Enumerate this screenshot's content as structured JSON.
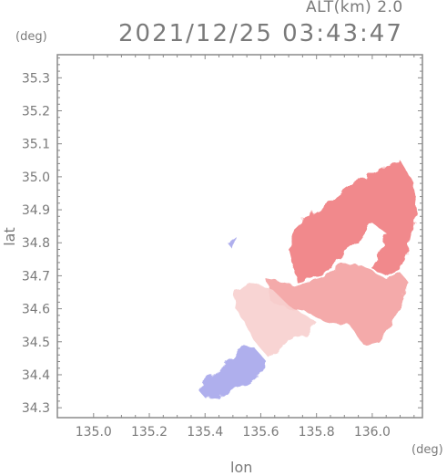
{
  "header": {
    "altitude_label": "ALT(km) 2.0",
    "timestamp": "2021/12/25 03:43:47"
  },
  "axes": {
    "x_unit": "(deg)",
    "y_unit": "(deg)",
    "x_label": "lon",
    "y_label": "lat",
    "x_range": [
      134.87,
      136.18
    ],
    "y_range": [
      34.27,
      35.37
    ],
    "x_ticks": [
      "135.0",
      "135.2",
      "135.4",
      "135.6",
      "135.8",
      "136.0"
    ],
    "y_ticks": [
      "34.3",
      "34.4",
      "34.5",
      "34.6",
      "34.7",
      "34.8",
      "34.9",
      "35.0",
      "35.1",
      "35.2",
      "35.3"
    ]
  },
  "colors": {
    "approaching": "#a8a8ec",
    "receding_strong": "#f07f82",
    "receding_medium": "#f3a3a3",
    "receding_weak": "#f7d0cf",
    "frame": "#8a8a8a"
  },
  "map_data": {
    "type": "doppler-velocity-field",
    "echo_regions": [
      {
        "name": "receding-strong-northeast",
        "tone": "receding_strong",
        "lonlat": [
          [
            135.77,
            34.88
          ],
          [
            135.85,
            34.93
          ],
          [
            135.93,
            34.98
          ],
          [
            136.03,
            35.02
          ],
          [
            136.1,
            35.05
          ],
          [
            136.15,
            34.98
          ],
          [
            136.16,
            34.9
          ],
          [
            136.13,
            34.78
          ],
          [
            136.1,
            34.72
          ],
          [
            136.05,
            34.7
          ],
          [
            136.0,
            34.72
          ],
          [
            136.03,
            34.77
          ],
          [
            136.05,
            34.83
          ],
          [
            136.0,
            34.86
          ],
          [
            135.95,
            34.8
          ],
          [
            135.9,
            34.77
          ],
          [
            135.82,
            34.7
          ],
          [
            135.73,
            34.68
          ],
          [
            135.7,
            34.78
          ],
          [
            135.72,
            34.84
          ]
        ]
      },
      {
        "name": "receding-medium-central-band",
        "tone": "receding_medium",
        "lonlat": [
          [
            135.62,
            34.69
          ],
          [
            135.73,
            34.67
          ],
          [
            135.82,
            34.69
          ],
          [
            135.9,
            34.74
          ],
          [
            135.97,
            34.73
          ],
          [
            136.05,
            34.69
          ],
          [
            136.1,
            34.71
          ],
          [
            136.13,
            34.68
          ],
          [
            136.09,
            34.58
          ],
          [
            136.02,
            34.5
          ],
          [
            135.97,
            34.49
          ],
          [
            135.92,
            34.55
          ],
          [
            135.84,
            34.56
          ],
          [
            135.76,
            34.59
          ],
          [
            135.7,
            34.6
          ],
          [
            135.64,
            34.62
          ]
        ]
      },
      {
        "name": "receding-weak-southwest",
        "tone": "receding_weak",
        "lonlat": [
          [
            135.5,
            34.66
          ],
          [
            135.58,
            34.68
          ],
          [
            135.64,
            34.66
          ],
          [
            135.7,
            34.61
          ],
          [
            135.76,
            34.58
          ],
          [
            135.8,
            34.56
          ],
          [
            135.76,
            34.52
          ],
          [
            135.68,
            34.49
          ],
          [
            135.63,
            34.45
          ],
          [
            135.58,
            34.5
          ],
          [
            135.54,
            34.56
          ],
          [
            135.51,
            34.6
          ]
        ]
      },
      {
        "name": "approaching-southwest",
        "tone": "approaching",
        "lonlat": [
          [
            135.4,
            34.38
          ],
          [
            135.45,
            34.42
          ],
          [
            135.5,
            34.45
          ],
          [
            135.54,
            34.49
          ],
          [
            135.58,
            34.48
          ],
          [
            135.62,
            34.44
          ],
          [
            135.6,
            34.4
          ],
          [
            135.56,
            34.37
          ],
          [
            135.5,
            34.36
          ],
          [
            135.45,
            34.33
          ],
          [
            135.4,
            34.33
          ],
          [
            135.38,
            34.35
          ]
        ]
      },
      {
        "name": "isolated-echo-north",
        "tone": "approaching",
        "lonlat": [
          [
            135.48,
            34.8
          ],
          [
            135.51,
            34.82
          ],
          [
            135.5,
            34.78
          ]
        ]
      }
    ]
  }
}
